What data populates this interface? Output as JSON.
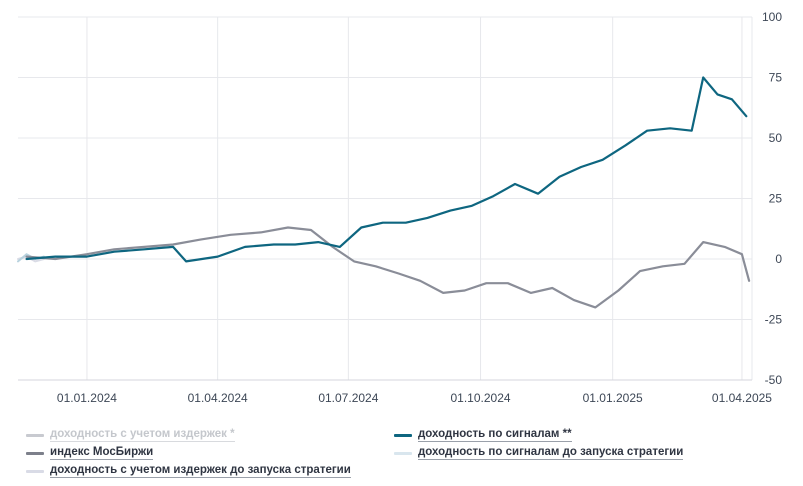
{
  "chart_data": {
    "type": "line",
    "title": "",
    "xlabel": "",
    "ylabel": "",
    "x_range": [
      "2023-11-14",
      "2025-04-08"
    ],
    "ylim": [
      -50,
      100
    ],
    "y_ticks": [
      100,
      75,
      50,
      25,
      0,
      -25,
      -50
    ],
    "x_ticks": [
      {
        "date": "2024-01-01",
        "label": "01.01.2024"
      },
      {
        "date": "2024-04-01",
        "label": "01.04.2024"
      },
      {
        "date": "2024-07-01",
        "label": "01.07.2024"
      },
      {
        "date": "2024-10-01",
        "label": "01.10.2024"
      },
      {
        "date": "2025-01-01",
        "label": "01.01.2025"
      },
      {
        "date": "2025-04-01",
        "label": "01.04.2025"
      }
    ],
    "grid": true,
    "y_axis_position": "right",
    "legend_position": "bottom",
    "series": [
      {
        "name": "доходность по сигналам **",
        "color": "#0e6680",
        "x": [
          "2023-11-20",
          "2023-12-10",
          "2024-01-01",
          "2024-01-20",
          "2024-02-10",
          "2024-03-01",
          "2024-03-10",
          "2024-04-01",
          "2024-04-20",
          "2024-05-10",
          "2024-05-25",
          "2024-06-10",
          "2024-06-25",
          "2024-07-10",
          "2024-07-25",
          "2024-08-10",
          "2024-08-25",
          "2024-09-10",
          "2024-09-25",
          "2024-10-10",
          "2024-10-25",
          "2024-11-10",
          "2024-11-25",
          "2024-12-10",
          "2024-12-25",
          "2025-01-10",
          "2025-01-25",
          "2025-02-10",
          "2025-02-25",
          "2025-03-05",
          "2025-03-15",
          "2025-03-25",
          "2025-04-04"
        ],
        "values": [
          0,
          1,
          1,
          3,
          4,
          5,
          -1,
          1,
          5,
          6,
          6,
          7,
          5,
          13,
          15,
          15,
          17,
          20,
          22,
          26,
          31,
          27,
          34,
          38,
          41,
          47,
          53,
          54,
          53,
          75,
          68,
          66,
          59
        ]
      },
      {
        "name": "индекс МосБиржи",
        "color": "#8a8d98",
        "x": [
          "2023-11-20",
          "2023-12-10",
          "2024-01-01",
          "2024-01-20",
          "2024-02-10",
          "2024-03-01",
          "2024-03-20",
          "2024-04-10",
          "2024-05-01",
          "2024-05-20",
          "2024-06-05",
          "2024-06-20",
          "2024-07-05",
          "2024-07-20",
          "2024-08-05",
          "2024-08-20",
          "2024-09-05",
          "2024-09-20",
          "2024-10-05",
          "2024-10-20",
          "2024-11-05",
          "2024-11-20",
          "2024-12-05",
          "2024-12-20",
          "2025-01-05",
          "2025-01-20",
          "2025-02-05",
          "2025-02-20",
          "2025-03-05",
          "2025-03-20",
          "2025-04-01",
          "2025-04-06"
        ],
        "values": [
          1,
          0,
          2,
          4,
          5,
          6,
          8,
          10,
          11,
          13,
          12,
          5,
          -1,
          -3,
          -6,
          -9,
          -14,
          -13,
          -10,
          -10,
          -14,
          -12,
          -17,
          -20,
          -13,
          -5,
          -3,
          -2,
          7,
          5,
          2,
          -9
        ]
      },
      {
        "name": "доходность с учетом издержек *",
        "color": "#b7bac2",
        "inactive": true,
        "x": [],
        "values": []
      },
      {
        "name": "доходность по сигналам до запуска стратегии",
        "color": "#b9d3df",
        "x": [
          "2023-11-14",
          "2023-11-20",
          "2023-11-26",
          "2023-12-02"
        ],
        "values": [
          -1,
          2,
          0,
          1
        ]
      },
      {
        "name": "доходность с учетом издержек до запуска стратегии",
        "color": "#dadce6",
        "x": [
          "2023-11-14",
          "2023-11-20",
          "2023-11-26",
          "2023-12-02"
        ],
        "values": [
          0,
          1,
          -1,
          0
        ]
      }
    ]
  },
  "legend": {
    "items": [
      {
        "label": "доходность с учетом издержек *",
        "color": "#c8cad0",
        "inactive": true
      },
      {
        "label": "доходность по сигналам **",
        "color": "#0e6680"
      },
      {
        "label": "индекс МосБиржи",
        "color": "#7d808b"
      },
      {
        "label": "доходность по сигналам до запуска стратегии",
        "color": "#d9e6ee"
      },
      {
        "label": "доходность с учетом издержек до запуска стратегии",
        "color": "#d9dbe6"
      }
    ]
  }
}
